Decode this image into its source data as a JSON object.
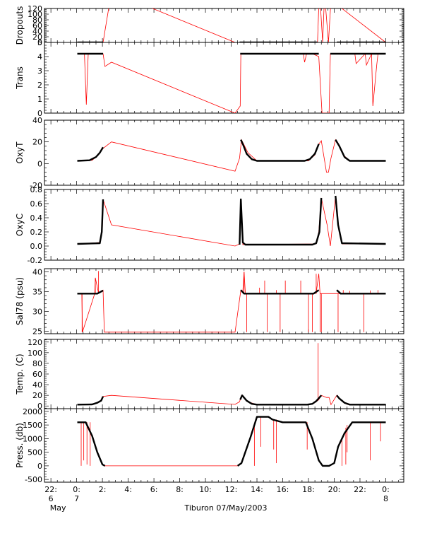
{
  "chart_data": {
    "type": "line",
    "xlabel": "Tiburon 07/May/2003",
    "x_unit": "hours relative to 00:00 7 May 2003",
    "xlim": [
      -2.5,
      25.4
    ],
    "x_ticks": [
      {
        "x": -2,
        "label": "22:",
        "sub": "6",
        "sub2": "May"
      },
      {
        "x": 0,
        "label": "0:",
        "sub": "7"
      },
      {
        "x": 2,
        "label": "2:"
      },
      {
        "x": 4,
        "label": "4:"
      },
      {
        "x": 6,
        "label": "6:"
      },
      {
        "x": 8,
        "label": "8:"
      },
      {
        "x": 10,
        "label": "10:"
      },
      {
        "x": 12,
        "label": "12:"
      },
      {
        "x": 14,
        "label": "14:"
      },
      {
        "x": 16,
        "label": "16:"
      },
      {
        "x": 18,
        "label": "18:"
      },
      {
        "x": 20,
        "label": "20:"
      },
      {
        "x": 22,
        "label": "22:"
      },
      {
        "x": 24,
        "label": "0:",
        "sub": "8"
      }
    ],
    "colors": {
      "raw": "#ff0000",
      "smoothed": "#000000",
      "frame": "#000000"
    },
    "panels": [
      {
        "ylabel": "Dropouts",
        "ylim": [
          0,
          120
        ],
        "yticks": [
          0,
          20,
          40,
          60,
          80,
          100,
          120
        ],
        "ytick_labels": [
          "0",
          "20",
          "40",
          "60",
          "80",
          "100",
          "120"
        ],
        "raw": {
          "x": [
            0.05,
            2.05,
            2.7,
            12.3,
            12.65,
            18.7,
            18.85,
            19.1,
            19.25,
            19.55,
            19.75,
            24.0
          ],
          "y": [
            0,
            0,
            180,
            0,
            0,
            0,
            190,
            0,
            170,
            0,
            150,
            0
          ]
        },
        "smoothed": [
          {
            "x": [
              0.05,
              2.05
            ],
            "y": [
              0,
              0
            ]
          },
          {
            "x": [
              12.65,
              18.7
            ],
            "y": [
              0,
              0
            ]
          },
          {
            "x": [
              20.2,
              24.0
            ],
            "y": [
              0,
              0
            ]
          }
        ]
      },
      {
        "ylabel": "Trans",
        "ylim": [
          0,
          5
        ],
        "yticks": [
          0,
          1,
          2,
          3,
          4,
          5
        ],
        "ytick_labels": [
          "0",
          "1",
          "2",
          "3",
          "4",
          "5"
        ],
        "raw": {
          "x": [
            0.05,
            0.6,
            0.75,
            0.9,
            2.05,
            2.2,
            2.7,
            12.3,
            12.7,
            12.75,
            17.6,
            17.7,
            17.85,
            18.3,
            18.8,
            19.05,
            19.15,
            19.6,
            19.7,
            20.2,
            21.6,
            21.7,
            22.4,
            22.5,
            22.9,
            23.0,
            23.3,
            23.4,
            24.0
          ],
          "y": [
            4.2,
            4.2,
            0.6,
            4.2,
            4.2,
            3.3,
            3.6,
            0,
            0.5,
            4.2,
            4.2,
            3.6,
            4.2,
            4.2,
            4.0,
            0,
            0,
            0,
            4.2,
            4.2,
            4.2,
            3.5,
            4.2,
            3.4,
            4.2,
            0.5,
            3.4,
            4.2,
            4.2
          ]
        },
        "smoothed": [
          {
            "x": [
              0.05,
              2.05
            ],
            "y": [
              4.2,
              4.2
            ]
          },
          {
            "x": [
              12.7,
              18.8
            ],
            "y": [
              4.2,
              4.2
            ]
          },
          {
            "x": [
              19.7,
              24.0
            ],
            "y": [
              4.2,
              4.2
            ]
          }
        ]
      },
      {
        "ylabel": "OxyT",
        "ylim": [
          -20,
          40
        ],
        "yticks": [
          -20,
          0,
          20,
          40
        ],
        "ytick_labels": [
          "-20",
          "0",
          "20",
          "40"
        ],
        "raw": {
          "x": [
            0.05,
            1.2,
            1.7,
            2.05,
            2.7,
            12.3,
            12.65,
            12.8,
            13.3,
            14.0,
            18.0,
            18.5,
            18.8,
            19.0,
            19.4,
            19.55,
            19.75,
            20.1,
            20.3,
            20.7,
            21.2,
            24.0
          ],
          "y": [
            2.5,
            3,
            8,
            14,
            20,
            -7,
            5,
            22,
            10,
            2.5,
            2.5,
            8,
            18,
            21,
            -8,
            -8,
            5,
            22,
            18,
            8,
            2.5,
            2.5
          ]
        },
        "smoothed": [
          {
            "x": [
              0.05,
              1.0,
              1.5,
              1.8,
              2.05
            ],
            "y": [
              2.5,
              3,
              6,
              10,
              15
            ]
          },
          {
            "x": [
              12.75,
              12.9,
              13.2,
              13.6,
              14.0,
              17.7,
              18.1,
              18.5,
              18.8
            ],
            "y": [
              22,
              18,
              9,
              4,
              2.5,
              2.5,
              4,
              9,
              18
            ]
          },
          {
            "x": [
              20.1,
              20.4,
              20.8,
              21.2,
              24.0
            ],
            "y": [
              22,
              16,
              6,
              2.5,
              2.5
            ]
          }
        ]
      },
      {
        "ylabel": "OxyC",
        "ylim": [
          -0.2,
          0.8
        ],
        "yticks": [
          -0.2,
          0.0,
          0.2,
          0.4,
          0.6,
          0.8
        ],
        "ytick_labels": [
          "-0.2",
          "0.0",
          "0.2",
          "0.4",
          "0.6",
          "0.8"
        ],
        "raw": {
          "x": [
            0.05,
            1.8,
            2.0,
            2.05,
            2.7,
            12.3,
            12.65,
            12.75,
            12.9,
            18.6,
            18.8,
            19.0,
            19.45,
            19.7,
            20.1,
            20.3,
            20.6,
            24.0
          ],
          "y": [
            0.03,
            0.05,
            0.25,
            0.66,
            0.3,
            0.0,
            0.03,
            0.66,
            0.02,
            0.03,
            0.2,
            0.68,
            0.3,
            0.0,
            0.71,
            0.3,
            0.03,
            0.03
          ]
        },
        "smoothed": [
          {
            "x": [
              0.05,
              1.8,
              1.95,
              2.05
            ],
            "y": [
              0.03,
              0.04,
              0.2,
              0.66
            ]
          },
          {
            "x": [
              12.65,
              12.75,
              12.9,
              13.1,
              18.3,
              18.6,
              18.85,
              19.0
            ],
            "y": [
              0.02,
              0.66,
              0.05,
              0.02,
              0.02,
              0.04,
              0.2,
              0.68
            ]
          },
          {
            "x": [
              20.1,
              20.3,
              20.6,
              24.0
            ],
            "y": [
              0.71,
              0.3,
              0.04,
              0.03
            ]
          }
        ]
      },
      {
        "ylabel": "Sal78 (psu)",
        "ylim": [
          24.4,
          40.8
        ],
        "yticks": [
          25,
          30,
          35,
          40
        ],
        "ytick_labels": [
          "25",
          "30",
          "35",
          "40"
        ],
        "raw": {
          "x": [
            0.05,
            0.4,
            0.45,
            1.4,
            1.45,
            1.7,
            1.95,
            2.05,
            2.15,
            12.3,
            12.75,
            12.9,
            13.0,
            13.1,
            18.6,
            18.8,
            18.9,
            24.0
          ],
          "y": [
            34.5,
            34.5,
            24.8,
            34.5,
            38.5,
            34.6,
            35.3,
            35.4,
            24.8,
            24.8,
            35.4,
            35.0,
            40.0,
            34.5,
            34.6,
            39.5,
            34.5,
            34.5
          ]
        },
        "spikes": [
          {
            "x": 0.42,
            "y0": 34.5,
            "y1": 24.8
          },
          {
            "x": 1.45,
            "y0": 34.5,
            "y1": 38.5
          },
          {
            "x": 1.7,
            "y0": 34.5,
            "y1": 40.2
          },
          {
            "x": 13.0,
            "y0": 34.5,
            "y1": 40.0
          },
          {
            "x": 13.2,
            "y0": 34.5,
            "y1": 24.8
          },
          {
            "x": 14.2,
            "y0": 34.5,
            "y1": 36.0
          },
          {
            "x": 14.6,
            "y0": 34.5,
            "y1": 37.8
          },
          {
            "x": 14.8,
            "y0": 34.5,
            "y1": 24.8
          },
          {
            "x": 15.5,
            "y0": 34.5,
            "y1": 35.4
          },
          {
            "x": 15.8,
            "y0": 34.5,
            "y1": 24.8
          },
          {
            "x": 16.2,
            "y0": 34.5,
            "y1": 37.8
          },
          {
            "x": 17.4,
            "y0": 34.5,
            "y1": 37.8
          },
          {
            "x": 18.0,
            "y0": 34.5,
            "y1": 24.8
          },
          {
            "x": 18.3,
            "y0": 34.5,
            "y1": 24.8
          },
          {
            "x": 18.6,
            "y0": 34.5,
            "y1": 39.5
          },
          {
            "x": 18.9,
            "y0": 34.5,
            "y1": 24.8
          },
          {
            "x": 19.0,
            "y0": 34.5,
            "y1": 24.8
          },
          {
            "x": 20.3,
            "y0": 34.5,
            "y1": 24.8
          },
          {
            "x": 20.7,
            "y0": 34.5,
            "y1": 35.4
          },
          {
            "x": 21.2,
            "y0": 34.5,
            "y1": 35.2
          },
          {
            "x": 22.3,
            "y0": 34.5,
            "y1": 24.8
          },
          {
            "x": 22.8,
            "y0": 34.5,
            "y1": 35.3
          },
          {
            "x": 23.4,
            "y0": 34.5,
            "y1": 35.4
          }
        ],
        "smoothed": [
          {
            "x": [
              0.05,
              1.6,
              2.05
            ],
            "y": [
              34.5,
              34.5,
              35.3
            ]
          },
          {
            "x": [
              12.75,
              13.0,
              18.4,
              18.8
            ],
            "y": [
              35.4,
              34.5,
              34.5,
              35.4
            ]
          },
          {
            "x": [
              20.2,
              20.5,
              24.0
            ],
            "y": [
              35.4,
              34.5,
              34.5
            ]
          }
        ]
      },
      {
        "ylabel": "Temp. (C)",
        "ylim": [
          -5,
          125
        ],
        "yticks": [
          0,
          20,
          40,
          60,
          80,
          100,
          120
        ],
        "ytick_labels": [
          "0",
          "20",
          "40",
          "60",
          "80",
          "100",
          "120"
        ],
        "raw": {
          "x": [
            0.05,
            1.2,
            1.8,
            2.05,
            2.7,
            12.3,
            12.65,
            12.8,
            13.3,
            14.0,
            18.0,
            18.5,
            18.8,
            19.0,
            19.4,
            19.6,
            19.75,
            20.2,
            20.5,
            21.0,
            24.0
          ],
          "y": [
            2.5,
            3,
            8,
            18,
            20,
            3,
            8,
            20,
            8,
            2.5,
            2.5,
            6,
            12,
            20,
            16,
            16,
            2.5,
            20,
            12,
            3,
            2.5
          ]
        },
        "spikes": [
          {
            "x": 18.75,
            "y0": 10,
            "y1": 118
          }
        ],
        "smoothed": [
          {
            "x": [
              0.05,
              1.2,
              1.6,
              1.9,
              2.05
            ],
            "y": [
              2.5,
              3,
              6,
              10,
              18
            ]
          },
          {
            "x": [
              12.7,
              12.85,
              13.2,
              13.6,
              14.0,
              17.9,
              18.3,
              18.6,
              19.0
            ],
            "y": [
              12,
              20,
              10,
              4,
              2.5,
              2.5,
              4,
              9,
              20
            ]
          },
          {
            "x": [
              20.2,
              20.4,
              20.8,
              21.2,
              24.0
            ],
            "y": [
              20,
              14,
              6,
              2.5,
              2.5
            ]
          }
        ]
      },
      {
        "ylabel": "Press. (db)",
        "ylim": [
          -600,
          2100
        ],
        "yticks": [
          -500,
          0,
          500,
          1000,
          1500,
          2000
        ],
        "ytick_labels": [
          "-500",
          "0",
          "500",
          "1000",
          "1500",
          "2000"
        ],
        "raw": {
          "x": [
            0.05,
            0.7,
            1.2,
            1.6,
            2.0,
            2.2,
            12.5,
            12.8,
            13.5,
            14.0,
            14.2,
            14.9,
            15.2,
            16.0,
            17.8,
            18.3,
            18.8,
            19.1,
            19.6,
            20.0,
            20.3,
            20.8,
            21.4,
            21.6,
            24.0
          ],
          "y": [
            1600,
            1600,
            1100,
            500,
            50,
            0,
            0,
            100,
            1050,
            1800,
            1800,
            1800,
            1700,
            1600,
            1600,
            1000,
            200,
            0,
            0,
            100,
            700,
            1200,
            1600,
            1600,
            1600
          ]
        },
        "spikes": [
          {
            "x": 0.35,
            "y0": 1600,
            "y1": 0
          },
          {
            "x": 0.55,
            "y0": 1600,
            "y1": 200
          },
          {
            "x": 0.8,
            "y0": 1600,
            "y1": 50
          },
          {
            "x": 1.05,
            "y0": 1600,
            "y1": 0
          },
          {
            "x": 13.8,
            "y0": 1500,
            "y1": 0
          },
          {
            "x": 14.3,
            "y0": 1800,
            "y1": 700
          },
          {
            "x": 15.3,
            "y0": 1700,
            "y1": 600
          },
          {
            "x": 15.5,
            "y0": 1700,
            "y1": 100
          },
          {
            "x": 17.9,
            "y0": 1600,
            "y1": 600
          },
          {
            "x": 20.6,
            "y0": 1000,
            "y1": 0
          },
          {
            "x": 20.9,
            "y0": 1400,
            "y1": 50
          },
          {
            "x": 21.0,
            "y0": 1500,
            "y1": 500
          },
          {
            "x": 22.8,
            "y0": 1600,
            "y1": 200
          },
          {
            "x": 23.6,
            "y0": 1600,
            "y1": 900
          }
        ],
        "smoothed": [
          {
            "x": [
              0.05,
              0.7,
              1.2,
              1.6,
              2.0,
              2.2
            ],
            "y": [
              1600,
              1600,
              1100,
              500,
              50,
              0
            ]
          },
          {
            "x": [
              12.5,
              12.8,
              13.5,
              14.0,
              14.2,
              14.9,
              15.2,
              16.0,
              17.8,
              18.3,
              18.8,
              19.1,
              19.6,
              20.0,
              20.3,
              20.8,
              21.4,
              24.0
            ],
            "y": [
              0,
              100,
              1050,
              1800,
              1800,
              1800,
              1700,
              1600,
              1600,
              1000,
              200,
              0,
              0,
              100,
              700,
              1200,
              1600,
              1600
            ]
          }
        ]
      }
    ]
  }
}
